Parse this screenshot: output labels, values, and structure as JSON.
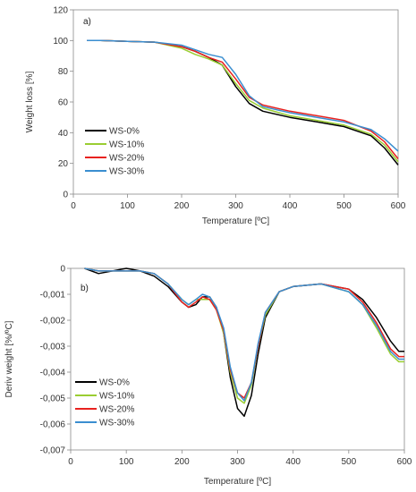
{
  "chart_data": [
    {
      "type": "line",
      "panel_label": "a)",
      "xlabel": "Temperature [ºC]",
      "ylabel": "Weight loss [%]",
      "xlim": [
        0,
        600
      ],
      "ylim": [
        0,
        120
      ],
      "xticks": [
        0,
        100,
        200,
        300,
        400,
        500,
        600
      ],
      "yticks": [
        0,
        20,
        40,
        60,
        80,
        100,
        120
      ],
      "ytick_labels": [
        "0",
        "20",
        "40",
        "60",
        "80",
        "100",
        "120"
      ],
      "legend_position": "lower-left",
      "grid": false,
      "x": [
        25,
        50,
        100,
        150,
        200,
        225,
        250,
        275,
        300,
        325,
        350,
        400,
        450,
        500,
        550,
        575,
        600
      ],
      "series": [
        {
          "name": "WS-0%",
          "color": "#000000",
          "values": [
            100,
            100,
            99.5,
            99,
            96,
            93,
            89,
            84,
            70,
            59,
            54,
            50,
            47,
            44,
            38,
            30,
            19
          ]
        },
        {
          "name": "WS-10%",
          "color": "#9acd32",
          "values": [
            100,
            100,
            99.5,
            99,
            95,
            91,
            88,
            84,
            72,
            61,
            56,
            51,
            48,
            45,
            39,
            32,
            21
          ]
        },
        {
          "name": "WS-20%",
          "color": "#e8221f",
          "values": [
            100,
            100,
            99.5,
            99,
            96,
            93,
            89,
            86,
            75,
            63,
            58,
            54,
            51,
            48,
            41,
            34,
            23
          ]
        },
        {
          "name": "WS-30%",
          "color": "#3a8ed0",
          "values": [
            100,
            100,
            99.5,
            99,
            97,
            94,
            91,
            89,
            78,
            64,
            57,
            53,
            50,
            47,
            42,
            36,
            28
          ]
        }
      ]
    },
    {
      "type": "line",
      "panel_label": "b)",
      "xlabel": "Temperature [ºC]",
      "ylabel": "Deriv weight [%/ºC]",
      "xlim": [
        0,
        600
      ],
      "ylim": [
        -0.007,
        0
      ],
      "xticks": [
        0,
        100,
        200,
        300,
        400,
        500,
        600
      ],
      "yticks": [
        0,
        -0.001,
        -0.002,
        -0.003,
        -0.004,
        -0.005,
        -0.006,
        -0.007
      ],
      "ytick_labels": [
        "0",
        "-0,001",
        "-0,002",
        "-0,003",
        "-0,004",
        "-0,005",
        "-0,006",
        "-0,007"
      ],
      "legend_position": "lower-left",
      "grid": false,
      "x": [
        25,
        50,
        75,
        100,
        125,
        150,
        175,
        200,
        212,
        225,
        237,
        250,
        262,
        275,
        287,
        300,
        312,
        325,
        337,
        350,
        375,
        400,
        450,
        500,
        525,
        550,
        575,
        590,
        600
      ],
      "series": [
        {
          "name": "WS-0%",
          "color": "#000000",
          "values": [
            0,
            -0.0002,
            -0.0001,
            0,
            -0.0001,
            -0.0003,
            -0.0007,
            -0.0013,
            -0.0015,
            -0.0014,
            -0.0011,
            -0.0011,
            -0.0015,
            -0.0025,
            -0.0042,
            -0.0054,
            -0.0057,
            -0.0049,
            -0.0033,
            -0.0019,
            -0.0009,
            -0.0007,
            -0.0006,
            -0.0008,
            -0.0012,
            -0.0019,
            -0.0028,
            -0.0032,
            -0.0032
          ]
        },
        {
          "name": "WS-10%",
          "color": "#9acd32",
          "values": [
            0,
            -0.0001,
            -0.0001,
            -0.0001,
            -0.0001,
            -0.0002,
            -0.0006,
            -0.0012,
            -0.0014,
            -0.0012,
            -0.0012,
            -0.0012,
            -0.0016,
            -0.0025,
            -0.004,
            -0.005,
            -0.0052,
            -0.0045,
            -0.003,
            -0.0018,
            -0.0009,
            -0.0007,
            -0.0006,
            -0.0009,
            -0.0014,
            -0.0023,
            -0.0033,
            -0.0036,
            -0.0036
          ]
        },
        {
          "name": "WS-20%",
          "color": "#e8221f",
          "values": [
            0,
            -0.0001,
            -0.0001,
            -0.0001,
            -0.0001,
            -0.0002,
            -0.0006,
            -0.0013,
            -0.0015,
            -0.0013,
            -0.0011,
            -0.0012,
            -0.0016,
            -0.0024,
            -0.0039,
            -0.0048,
            -0.005,
            -0.0044,
            -0.003,
            -0.0017,
            -0.0009,
            -0.0007,
            -0.0006,
            -0.0008,
            -0.0013,
            -0.0021,
            -0.0031,
            -0.0034,
            -0.0034
          ]
        },
        {
          "name": "WS-30%",
          "color": "#3a8ed0",
          "values": [
            0,
            -0.0001,
            -0.0001,
            -0.0001,
            -0.0001,
            -0.0002,
            -0.0006,
            -0.0012,
            -0.0014,
            -0.0012,
            -0.001,
            -0.0011,
            -0.0015,
            -0.0023,
            -0.0038,
            -0.0048,
            -0.0051,
            -0.0044,
            -0.0029,
            -0.0017,
            -0.0009,
            -0.0007,
            -0.0006,
            -0.0009,
            -0.0014,
            -0.0022,
            -0.0032,
            -0.0035,
            -0.0035
          ]
        }
      ]
    }
  ]
}
